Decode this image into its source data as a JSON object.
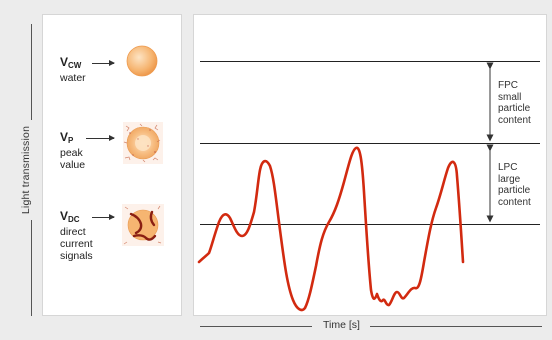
{
  "axes": {
    "y_label": "Light transmission",
    "x_label": "Time  [s]"
  },
  "levels": [
    {
      "symbol": "V",
      "sub": "CW",
      "description": [
        "water"
      ]
    },
    {
      "symbol": "V",
      "sub": "P",
      "description": [
        "peak",
        "value"
      ]
    },
    {
      "symbol": "V",
      "sub": "DC",
      "description": [
        "direct",
        "current",
        "signals"
      ]
    }
  ],
  "annotations": {
    "fpc": [
      "FPC",
      "small",
      "particle",
      "content"
    ],
    "lpc": [
      "LPC",
      "large",
      "particle",
      "content"
    ]
  },
  "colors": {
    "signal": "#d22a10",
    "particle_fill": "#f6b571",
    "particle_edge": "#e89a52",
    "background": "#ececec"
  }
}
